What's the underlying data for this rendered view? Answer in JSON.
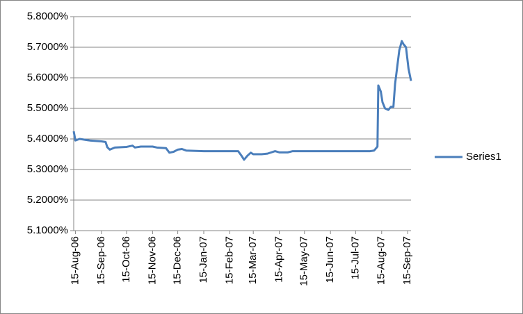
{
  "chart_data": {
    "type": "line",
    "x": [
      "2006-08-13",
      "2006-08-15",
      "2006-08-20",
      "2006-09-01",
      "2006-09-15",
      "2006-09-20",
      "2006-09-22",
      "2006-09-25",
      "2006-10-01",
      "2006-10-15",
      "2006-10-22",
      "2006-10-25",
      "2006-11-01",
      "2006-11-15",
      "2006-11-20",
      "2006-12-01",
      "2006-12-05",
      "2006-12-10",
      "2006-12-15",
      "2006-12-20",
      "2006-12-25",
      "2007-01-15",
      "2007-02-15",
      "2007-02-25",
      "2007-03-01",
      "2007-03-04",
      "2007-03-08",
      "2007-03-12",
      "2007-03-15",
      "2007-03-25",
      "2007-04-01",
      "2007-04-10",
      "2007-04-15",
      "2007-04-25",
      "2007-05-01",
      "2007-05-15",
      "2007-06-15",
      "2007-07-15",
      "2007-08-01",
      "2007-08-06",
      "2007-08-10",
      "2007-08-11",
      "2007-08-14",
      "2007-08-16",
      "2007-08-19",
      "2007-08-23",
      "2007-08-26",
      "2007-08-29",
      "2007-08-31",
      "2007-09-05",
      "2007-09-08",
      "2007-09-10",
      "2007-09-13",
      "2007-09-16",
      "2007-09-19"
    ],
    "series": [
      {
        "name": "Series1",
        "color": "#4a7ebb",
        "values": [
          5.425,
          5.395,
          5.4,
          5.395,
          5.392,
          5.39,
          5.373,
          5.365,
          5.372,
          5.374,
          5.378,
          5.372,
          5.375,
          5.375,
          5.372,
          5.37,
          5.355,
          5.358,
          5.365,
          5.367,
          5.362,
          5.36,
          5.36,
          5.36,
          5.345,
          5.332,
          5.345,
          5.355,
          5.35,
          5.35,
          5.352,
          5.36,
          5.356,
          5.356,
          5.36,
          5.36,
          5.36,
          5.36,
          5.36,
          5.362,
          5.375,
          5.575,
          5.555,
          5.52,
          5.5,
          5.495,
          5.505,
          5.505,
          5.58,
          5.69,
          5.72,
          5.71,
          5.7,
          5.63,
          5.59
        ]
      }
    ],
    "xlim": [
      "2006-08-13",
      "2007-09-19"
    ],
    "xticks": [
      {
        "value": "2006-08-15",
        "label": "15-Aug-06"
      },
      {
        "value": "2006-09-15",
        "label": "15-Sep-06"
      },
      {
        "value": "2006-10-15",
        "label": "15-Oct-06"
      },
      {
        "value": "2006-11-15",
        "label": "15-Nov-06"
      },
      {
        "value": "2006-12-15",
        "label": "15-Dec-06"
      },
      {
        "value": "2007-01-15",
        "label": "15-Jan-07"
      },
      {
        "value": "2007-02-15",
        "label": "15-Feb-07"
      },
      {
        "value": "2007-03-15",
        "label": "15-Mar-07"
      },
      {
        "value": "2007-04-15",
        "label": "15-Apr-07"
      },
      {
        "value": "2007-05-15",
        "label": "15-May-07"
      },
      {
        "value": "2007-06-15",
        "label": "15-Jun-07"
      },
      {
        "value": "2007-07-15",
        "label": "15-Jul-07"
      },
      {
        "value": "2007-08-15",
        "label": "15-Aug-07"
      },
      {
        "value": "2007-09-15",
        "label": "15-Sep-07"
      }
    ],
    "ylim": [
      5.1,
      5.8
    ],
    "yticks": [
      {
        "value": 5.1,
        "label": "5.1000%"
      },
      {
        "value": 5.2,
        "label": "5.2000%"
      },
      {
        "value": 5.3,
        "label": "5.3000%"
      },
      {
        "value": 5.4,
        "label": "5.4000%"
      },
      {
        "value": 5.5,
        "label": "5.5000%"
      },
      {
        "value": 5.6,
        "label": "5.6000%"
      },
      {
        "value": 5.7,
        "label": "5.7000%"
      },
      {
        "value": 5.8,
        "label": "5.8000%"
      }
    ],
    "grid": true,
    "legend": "right"
  }
}
